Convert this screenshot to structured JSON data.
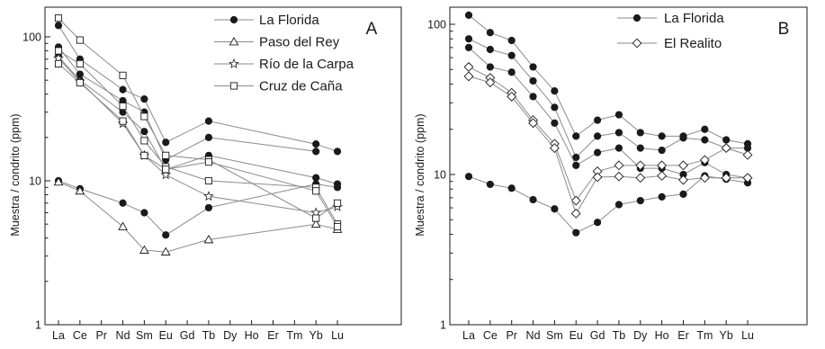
{
  "chart_data": [
    {
      "type": "line",
      "panel": "A",
      "ylabel": "Muestra / condrito (ppm)",
      "xlabel": "",
      "yscale": "log",
      "ylim": [
        1,
        150
      ],
      "yticks": [
        1,
        10,
        100
      ],
      "categories": [
        "La",
        "Ce",
        "Pr",
        "Nd",
        "Sm",
        "Eu",
        "Gd",
        "Tb",
        "Dy",
        "Ho",
        "Er",
        "Tm",
        "Yb",
        "Lu"
      ],
      "legend": [
        "La Florida",
        "Paso del Rey",
        "Río de la Carpa",
        "Cruz de Caña"
      ],
      "legend_position": "top-right",
      "series": [
        {
          "name": "La Florida",
          "marker": "circle-filled",
          "values": [
            120,
            70,
            null,
            43,
            37,
            18.5,
            null,
            26,
            null,
            null,
            null,
            null,
            18,
            16
          ]
        },
        {
          "name": "La Florida",
          "marker": "circle-filled",
          "values": [
            85,
            55,
            null,
            36,
            30,
            14,
            null,
            20,
            null,
            null,
            null,
            null,
            16,
            null
          ]
        },
        {
          "name": "La Florida",
          "marker": "circle-filled",
          "values": [
            73,
            50,
            null,
            30,
            22,
            12,
            null,
            15,
            null,
            null,
            null,
            null,
            10.5,
            9.5
          ]
        },
        {
          "name": "La Florida",
          "marker": "circle-filled",
          "values": [
            10,
            8.8,
            null,
            7,
            6,
            4.2,
            null,
            6.5,
            null,
            null,
            null,
            null,
            9.5,
            9
          ]
        },
        {
          "name": "Paso del Rey",
          "marker": "triangle-open",
          "values": [
            9.8,
            8.5,
            null,
            4.8,
            3.3,
            3.2,
            null,
            3.9,
            null,
            null,
            null,
            null,
            5,
            4.6
          ]
        },
        {
          "name": "Río de la Carpa",
          "marker": "star-open",
          "values": [
            71,
            49,
            null,
            25,
            15,
            11,
            null,
            7.8,
            null,
            null,
            null,
            null,
            6,
            6.6
          ]
        },
        {
          "name": "Cruz de Caña",
          "marker": "square-open",
          "values": [
            135,
            95,
            null,
            54,
            28,
            15,
            null,
            14,
            null,
            null,
            null,
            null,
            5.5,
            7
          ]
        },
        {
          "name": "Cruz de Caña",
          "marker": "square-open",
          "values": [
            80,
            65,
            null,
            33,
            19,
            12.5,
            null,
            10,
            null,
            null,
            null,
            null,
            9,
            5
          ]
        },
        {
          "name": "Cruz de Caña",
          "marker": "square-open",
          "values": [
            65,
            48,
            null,
            26,
            15,
            12,
            null,
            13.5,
            null,
            null,
            null,
            null,
            8.5,
            4.8
          ]
        }
      ]
    },
    {
      "type": "line",
      "panel": "B",
      "ylabel": "Muestra / condrito (ppm)",
      "xlabel": "",
      "yscale": "log",
      "ylim": [
        1,
        140
      ],
      "yticks": [
        1,
        10,
        100
      ],
      "categories": [
        "La",
        "Ce",
        "Pr",
        "Nd",
        "Sm",
        "Eu",
        "Gd",
        "Tb",
        "Dy",
        "Ho",
        "Er",
        "Tm",
        "Yb",
        "Lu"
      ],
      "legend": [
        "La Florida",
        "El Realito"
      ],
      "legend_position": "top-left",
      "series": [
        {
          "name": "La Florida",
          "marker": "circle-filled",
          "values": [
            115,
            88,
            78,
            52,
            36,
            18,
            23,
            25,
            19,
            18,
            18,
            20,
            17,
            16
          ]
        },
        {
          "name": "La Florida",
          "marker": "circle-filled",
          "values": [
            80,
            68,
            62,
            42,
            28,
            13,
            18,
            19,
            15,
            14.5,
            17.5,
            17,
            15,
            15
          ]
        },
        {
          "name": "La Florida",
          "marker": "circle-filled",
          "values": [
            70,
            52,
            48,
            33,
            22,
            11.5,
            14,
            15,
            11,
            11,
            10,
            12,
            10,
            9.5
          ]
        },
        {
          "name": "La Florida",
          "marker": "circle-filled",
          "values": [
            9.7,
            8.6,
            8.1,
            6.8,
            5.9,
            4.1,
            4.8,
            6.3,
            6.7,
            7.1,
            7.4,
            9.8,
            9.3,
            8.8
          ]
        },
        {
          "name": "El Realito",
          "marker": "diamond-open",
          "values": [
            52,
            44,
            35,
            23,
            16,
            6.7,
            10.5,
            11.5,
            11.5,
            11.5,
            11.5,
            12.5,
            15,
            13.5
          ]
        },
        {
          "name": "El Realito",
          "marker": "diamond-open",
          "values": [
            45,
            41,
            33,
            22,
            15,
            5.5,
            9.6,
            9.7,
            9.5,
            9.8,
            9.2,
            9.5,
            9.5,
            9.5
          ]
        }
      ]
    }
  ]
}
